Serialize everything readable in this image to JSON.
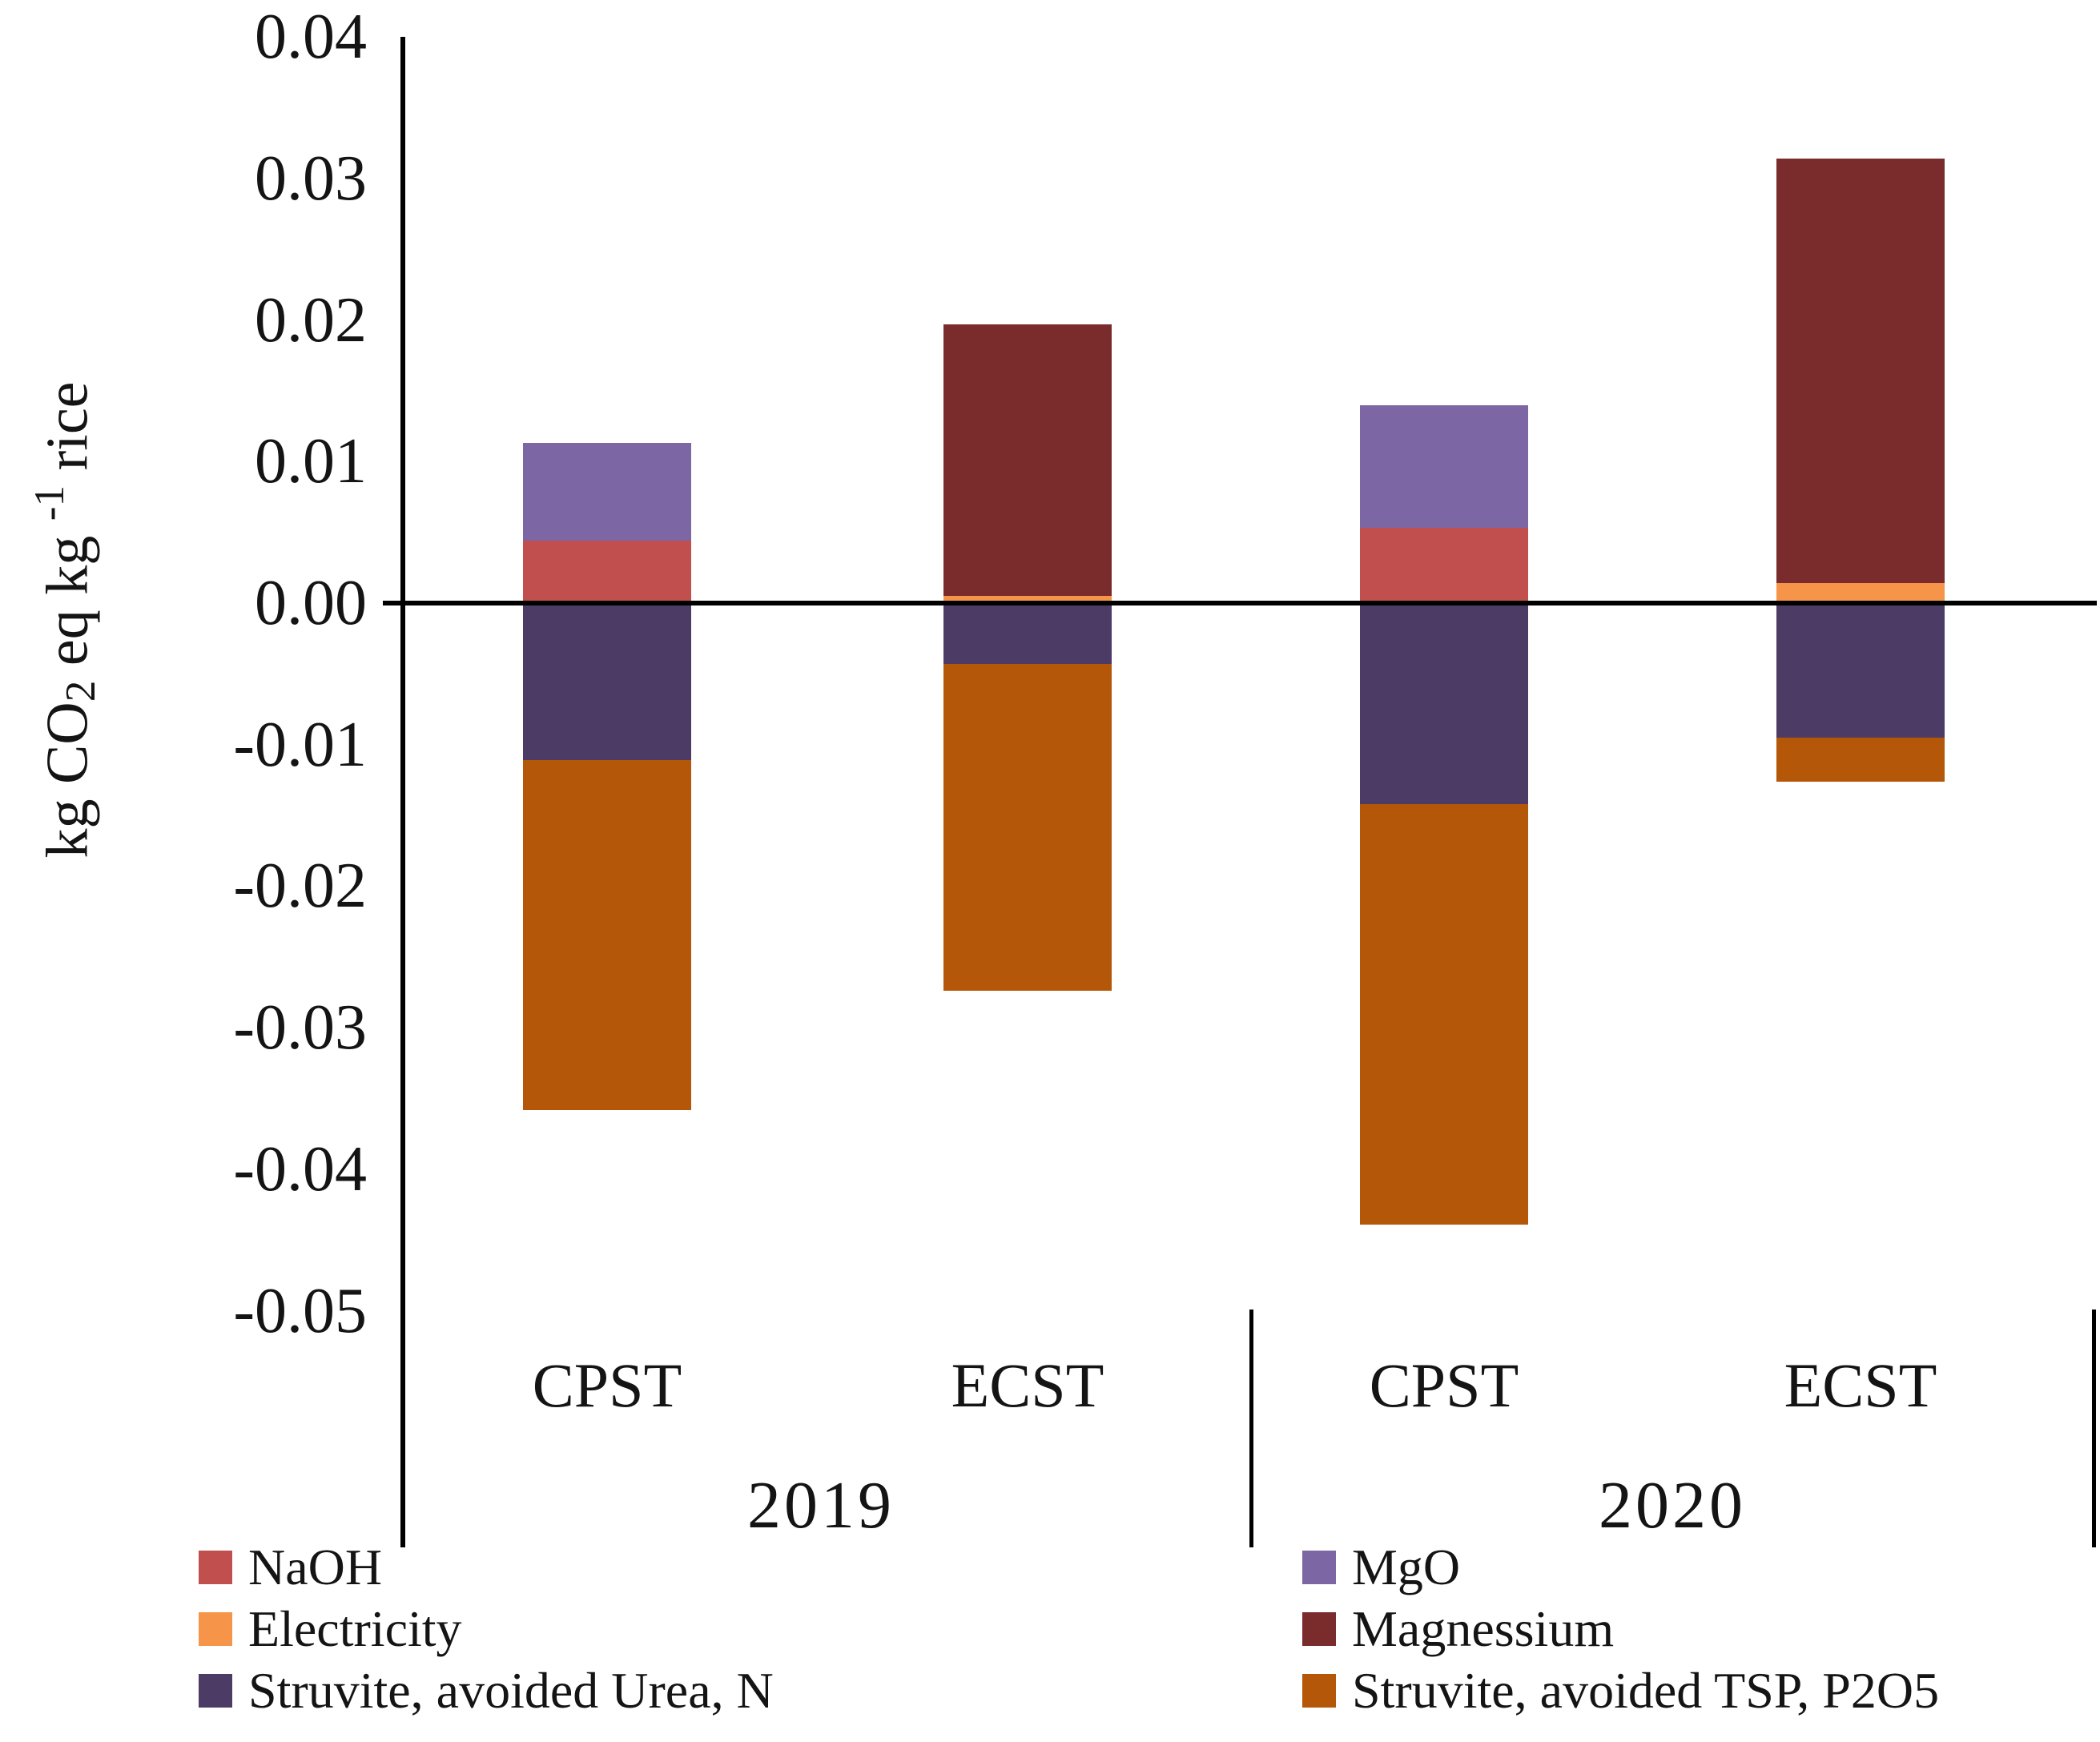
{
  "y_axis": {
    "label_parts": {
      "p0": "kg CO",
      "p1": "2",
      "p2": " eq kg ",
      "p3": "-1",
      "p4": " rice"
    },
    "tick_labels": [
      "0.04",
      "0.03",
      "0.02",
      "0.01",
      "0.00",
      "-0.01",
      "-0.02",
      "-0.03",
      "-0.04",
      "-0.05"
    ],
    "tick_values": [
      0.04,
      0.03,
      0.02,
      0.01,
      0.0,
      -0.01,
      -0.02,
      -0.03,
      -0.04,
      -0.05
    ]
  },
  "x_axis": {
    "bar_labels": [
      "CPST",
      "ECST",
      "CPST",
      "ECST"
    ],
    "group_labels": [
      "2019",
      "2020"
    ]
  },
  "legend": {
    "columns": [
      [
        "NaOH",
        "Electricity",
        "Struvite, avoided Urea, N"
      ],
      [
        "MgO",
        "Magnessium",
        "Struvite, avoided TSP, P2O5"
      ]
    ]
  },
  "chart_data": {
    "type": "bar",
    "stacked": true,
    "title": "",
    "xlabel": "",
    "ylabel": "kg CO2 eq kg-1 rice",
    "ylim": [
      -0.05,
      0.04
    ],
    "grid": false,
    "legend_position": "bottom",
    "categories": [
      "CPST 2019",
      "ECST 2019",
      "CPST 2020",
      "ECST 2020"
    ],
    "groups": [
      "2019",
      "2020"
    ],
    "units": "kg CO2 eq per kg rice",
    "series": [
      {
        "name": "NaOH",
        "color": "#C04F4D",
        "values": [
          0.0044,
          0,
          0.0053,
          0
        ]
      },
      {
        "name": "Electricity",
        "color": "#F6954A",
        "values": [
          0,
          0.0005,
          0,
          0.0014
        ]
      },
      {
        "name": "Struvite, avoided Urea, N",
        "color": "#4C3B64",
        "values": [
          -0.0111,
          -0.0043,
          -0.0142,
          -0.0095
        ]
      },
      {
        "name": "MgO",
        "color": "#7C66A4",
        "values": [
          0.0069,
          0,
          0.0087,
          0
        ]
      },
      {
        "name": "Magnessium",
        "color": "#7A2B2B",
        "values": [
          0,
          0.0192,
          0,
          0.03
        ]
      },
      {
        "name": "Struvite, avoided TSP, P2O5",
        "color": "#B55708",
        "values": [
          -0.0247,
          -0.0231,
          -0.0297,
          -0.0031
        ]
      }
    ],
    "positive_stack_order": [
      "Electricity",
      "NaOH",
      "MgO",
      "Magnessium"
    ],
    "negative_stack_order": [
      "Struvite, avoided Urea, N",
      "Struvite, avoided TSP, P2O5"
    ],
    "stack_totals_top": [
      0.0113,
      0.0197,
      0.014,
      0.0314
    ],
    "stack_totals_bottom": [
      -0.0358,
      -0.0274,
      -0.0439,
      -0.0126
    ]
  }
}
